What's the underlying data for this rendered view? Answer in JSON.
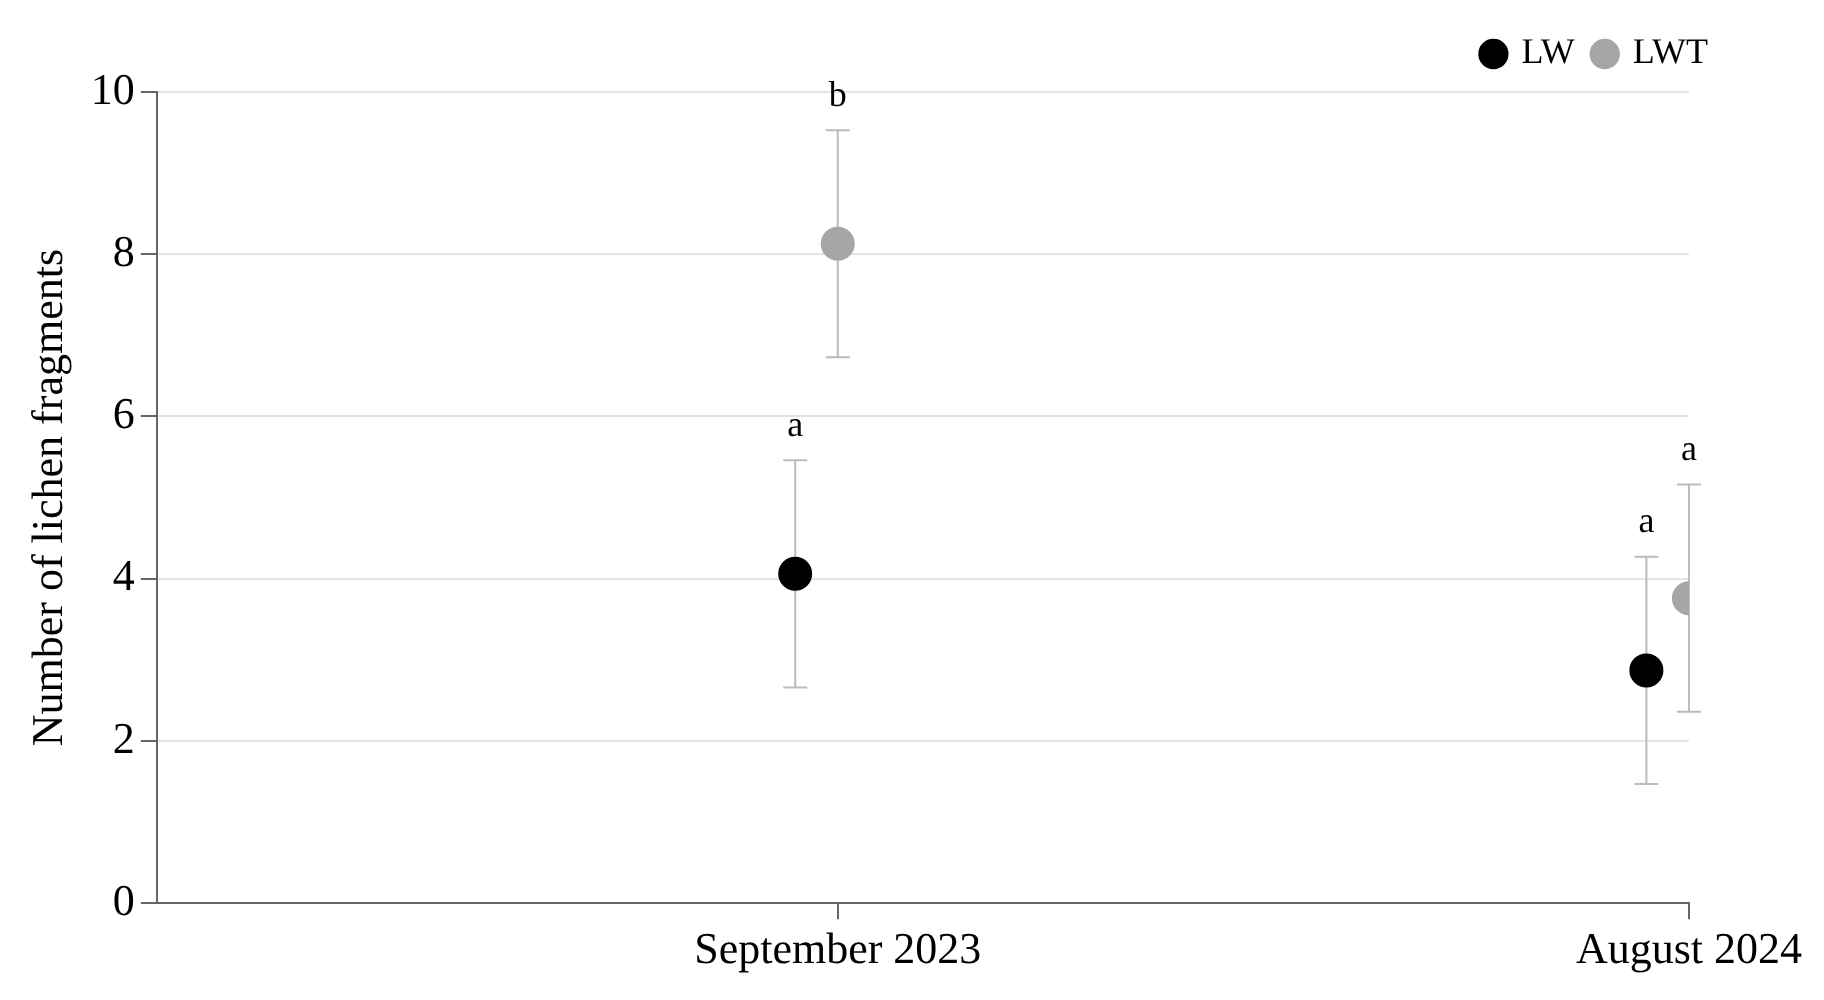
{
  "chart_data": {
    "type": "scatter",
    "ylabel": "Number of lichen fragments",
    "categories": [
      "September 2023",
      "August 2024"
    ],
    "series": [
      {
        "name": "LW",
        "color": "#000000",
        "values": [
          4.06,
          2.87
        ],
        "errors": [
          1.4,
          1.4
        ]
      },
      {
        "name": "LWT",
        "color": "#a6a6a6",
        "values": [
          8.13,
          3.76
        ],
        "errors": [
          1.4,
          1.4
        ]
      }
    ],
    "ylim": [
      0,
      10
    ],
    "yticks": [
      0,
      2,
      4,
      6,
      8,
      10
    ],
    "grid": "y",
    "legend": "top right",
    "marker": "circle",
    "annotations": [
      "a",
      "a",
      "b",
      "a"
    ]
  }
}
